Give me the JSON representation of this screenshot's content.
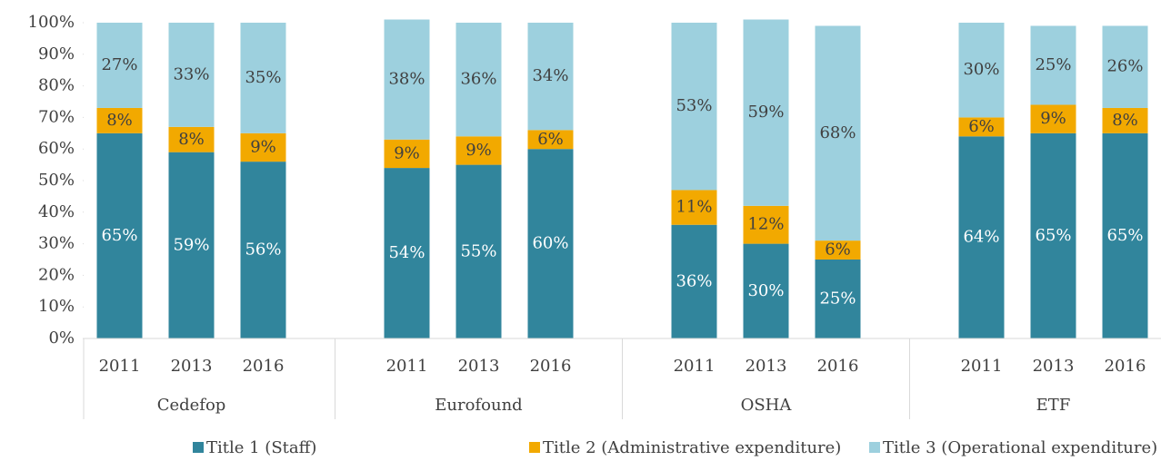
{
  "chart_data": {
    "type": "stacked_bar",
    "groups": [
      "Cedefop",
      "Eurofound",
      "OSHA",
      "ETF"
    ],
    "categories": [
      "2011",
      "2013",
      "2016",
      null,
      "2011",
      "2013",
      "2016",
      null,
      "2011",
      "2013",
      "2016",
      null,
      "2011",
      "2013",
      "2016"
    ],
    "series": [
      {
        "name": "Title 1 (Staff)",
        "color": "#31859c",
        "values": [
          65,
          59,
          56,
          null,
          54,
          55,
          60,
          null,
          36,
          30,
          25,
          null,
          64,
          65,
          65
        ],
        "value_labels": [
          "65%",
          "59%",
          "56%",
          null,
          "54%",
          "55%",
          "60%",
          null,
          "36%",
          "30%",
          "25%",
          null,
          "64%",
          "65%",
          "65%"
        ]
      },
      {
        "name": "Title 2 (Administrative expenditure)",
        "color": "#f2a900",
        "values": [
          8,
          8,
          9,
          null,
          9,
          9,
          6,
          null,
          11,
          12,
          6,
          null,
          6,
          9,
          8
        ],
        "value_labels": [
          "8%",
          "8%",
          "9%",
          null,
          "9%",
          "9%",
          "6%",
          null,
          "11%",
          "12%",
          "6%",
          null,
          "6%",
          "9%",
          "8%"
        ]
      },
      {
        "name": "Title 3 (Operational expenditure)",
        "color": "#9dd0de",
        "values": [
          27,
          33,
          35,
          null,
          38,
          36,
          34,
          null,
          53,
          59,
          68,
          null,
          30,
          25,
          26
        ],
        "value_labels": [
          "27%",
          "33%",
          "35%",
          null,
          "38%",
          "36%",
          "34%",
          null,
          "53%",
          "59%",
          "68%",
          null,
          "30%",
          "25%",
          "26%"
        ]
      }
    ],
    "ylim": [
      0,
      100
    ],
    "yticks": [
      {
        "value": 0,
        "label": "0%"
      },
      {
        "value": 10,
        "label": "10%"
      },
      {
        "value": 20,
        "label": "20%"
      },
      {
        "value": 30,
        "label": "30%"
      },
      {
        "value": 40,
        "label": "40%"
      },
      {
        "value": 50,
        "label": "50%"
      },
      {
        "value": 60,
        "label": "60%"
      },
      {
        "value": 70,
        "label": "70%"
      },
      {
        "value": 80,
        "label": "80%"
      },
      {
        "value": 90,
        "label": "90%"
      },
      {
        "value": 100,
        "label": "100%"
      }
    ],
    "legend": "bottom"
  }
}
